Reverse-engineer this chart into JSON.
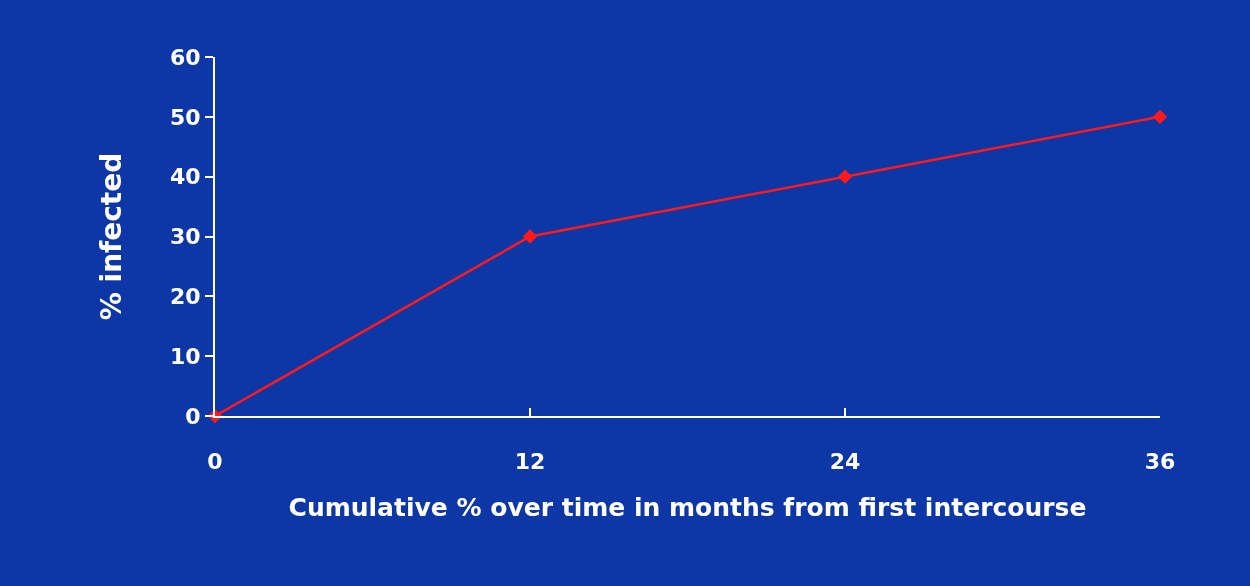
{
  "chart_data": {
    "type": "line",
    "xlabel": "Cumulative % over time in months from first intercourse",
    "ylabel": "% infected",
    "x": [
      0,
      12,
      24,
      36
    ],
    "series": [
      {
        "color": "#ff1a1a",
        "values": [
          0,
          30,
          40,
          50
        ]
      }
    ],
    "xlim": [
      0,
      36
    ],
    "xticks": [
      0,
      12,
      24,
      36
    ],
    "ylim": [
      0,
      60
    ],
    "yticks": [
      0,
      10,
      20,
      30,
      40,
      50,
      60
    ],
    "marker": "diamond",
    "line_style": "solid",
    "grid": false,
    "legend": false
  }
}
